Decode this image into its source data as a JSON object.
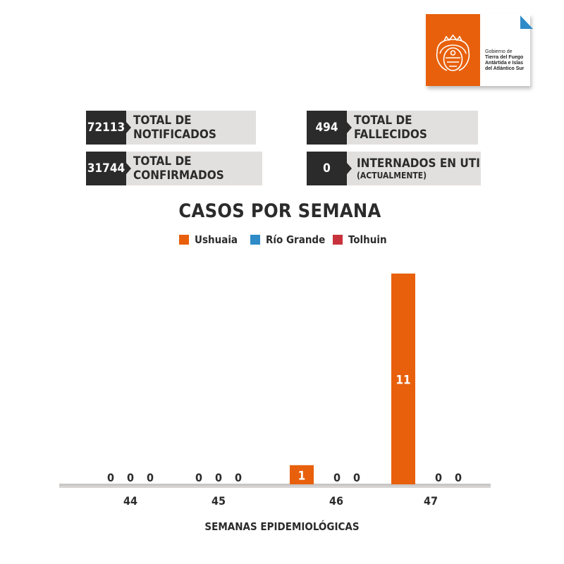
{
  "logo": {
    "lines": [
      "Gobierno de",
      "Tierra del Fuego",
      "Antártida e Islas",
      "del Atlántico Sur"
    ]
  },
  "stats": {
    "notificados": {
      "value": "72113",
      "label": "TOTAL DE NOTIFICADOS"
    },
    "fallecidos": {
      "value": "494",
      "label": "TOTAL DE FALLECIDOS"
    },
    "confirmados": {
      "value": "31744",
      "label": "TOTAL DE CONFIRMADOS"
    },
    "internados": {
      "value": "0",
      "label": "INTERNADOS EN UTI",
      "sublabel": "(ACTUALMENTE)"
    }
  },
  "colors": {
    "ushuaia": "#e8600c",
    "rio_grande": "#2e8bc8",
    "tolhuin": "#c8323c",
    "dark": "#2b2b2b",
    "label_bg": "#e2e0de"
  },
  "chart_data": {
    "type": "bar",
    "title": "CASOS POR SEMANA",
    "xlabel": "SEMANAS EPIDEMIOLÓGICAS",
    "ylabel": "",
    "categories": [
      "44",
      "45",
      "46",
      "47"
    ],
    "series": [
      {
        "name": "Ushuaia",
        "values": [
          0,
          0,
          1,
          11
        ],
        "color": "#e8600c"
      },
      {
        "name": "Río Grande",
        "values": [
          0,
          0,
          0,
          0
        ],
        "color": "#2e8bc8"
      },
      {
        "name": "Tolhuin",
        "values": [
          0,
          0,
          0,
          0
        ],
        "color": "#c8323c"
      }
    ],
    "ylim": [
      0,
      11
    ],
    "grid": false,
    "legend_position": "top-center",
    "data_labels": true
  }
}
